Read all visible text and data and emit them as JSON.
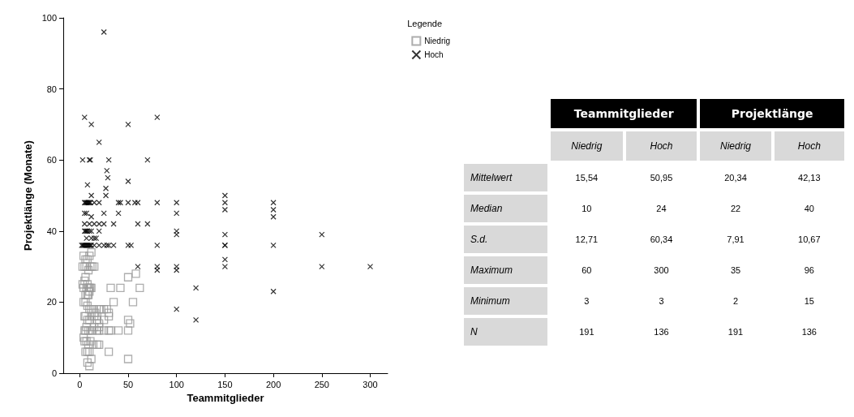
{
  "chart_data": [
    {
      "type": "scatter",
      "xlabel": "Teammitglieder",
      "ylabel": "Projektlänge (Monate)",
      "legend_title": "Legende",
      "legend": "top right",
      "grid": false,
      "xlim": [
        -17,
        318
      ],
      "ylim": [
        0,
        100
      ],
      "xticks": [
        0,
        50,
        100,
        150,
        200,
        250,
        300
      ],
      "yticks": [
        0,
        20,
        40,
        60,
        80,
        100
      ],
      "series": [
        {
          "name": "Niedrig",
          "color": "#999999",
          "marker": "square",
          "x": [
            3,
            4,
            5,
            6,
            7,
            8,
            9,
            10,
            11,
            12,
            3,
            5,
            7,
            9,
            11,
            13,
            15,
            4,
            6,
            8,
            10,
            12,
            14,
            16,
            18,
            20,
            22,
            25,
            28,
            30,
            35,
            42,
            55,
            5,
            7,
            9,
            11,
            13,
            15,
            18,
            20,
            25,
            30,
            40,
            50,
            52,
            5,
            6,
            8,
            10,
            12,
            15,
            18,
            20,
            25,
            30,
            50,
            62,
            5,
            7,
            9,
            11,
            14,
            18,
            20,
            30,
            50,
            8,
            10,
            12,
            6,
            8,
            10,
            4,
            6,
            8,
            10,
            12,
            6,
            8,
            9,
            10,
            32,
            50,
            58,
            20,
            32,
            4,
            6
          ],
          "values": [
            25,
            24,
            26,
            27,
            24,
            25,
            24,
            24,
            24,
            24,
            30,
            30,
            30,
            29,
            30,
            30,
            30,
            20,
            20,
            19,
            18,
            18,
            18,
            17,
            16,
            18,
            18,
            18,
            18,
            17,
            20,
            24,
            20,
            12,
            13,
            12,
            12,
            12,
            13,
            12,
            12,
            12,
            12,
            12,
            12,
            14,
            16,
            16,
            15,
            15,
            16,
            16,
            15,
            14,
            15,
            16,
            15,
            24,
            9,
            9,
            8,
            9,
            8,
            8,
            8,
            6,
            4,
            3,
            2,
            4,
            6,
            6,
            6,
            33,
            32,
            32,
            33,
            34,
            22,
            22,
            22,
            23,
            24,
            27,
            28,
            13,
            12,
            10,
            12
          ]
        },
        {
          "name": "Hoch",
          "color": "#000000",
          "marker": "cross",
          "x": [
            5,
            12,
            50,
            80,
            25,
            20,
            3,
            10,
            11,
            30,
            70,
            28,
            29,
            8,
            50,
            27,
            12,
            27,
            150,
            150,
            150,
            200,
            200,
            200,
            5,
            6,
            7,
            8,
            9,
            10,
            11,
            15,
            20,
            40,
            42,
            50,
            57,
            60,
            80,
            100,
            5,
            7,
            12,
            25,
            40,
            100,
            5,
            10,
            15,
            20,
            25,
            35,
            60,
            70,
            5,
            6,
            7,
            8,
            10,
            12,
            20,
            100,
            100,
            150,
            7,
            12,
            15,
            17,
            2,
            3,
            4,
            5,
            6,
            7,
            8,
            9,
            10,
            11,
            12,
            15,
            20,
            25,
            28,
            30,
            35,
            50,
            53,
            80,
            150,
            200,
            60,
            80,
            100,
            150,
            250,
            300,
            80,
            100,
            150,
            150,
            250,
            120,
            120,
            100,
            200
          ],
          "values": [
            72,
            70,
            70,
            72,
            96,
            65,
            60,
            60,
            60,
            60,
            60,
            57,
            55,
            53,
            54,
            52,
            50,
            50,
            50,
            48,
            46,
            48,
            46,
            44,
            48,
            48,
            48,
            48,
            48,
            48,
            48,
            48,
            48,
            48,
            48,
            48,
            48,
            48,
            48,
            48,
            45,
            45,
            44,
            45,
            45,
            45,
            42,
            42,
            42,
            42,
            42,
            42,
            42,
            42,
            40,
            40,
            40,
            40,
            40,
            40,
            40,
            40,
            39,
            39,
            38,
            38,
            38,
            38,
            36,
            36,
            36,
            36,
            36,
            36,
            36,
            36,
            36,
            36,
            36,
            36,
            36,
            36,
            36,
            36,
            36,
            36,
            36,
            36,
            36,
            36,
            30,
            30,
            30,
            30,
            30,
            30,
            29,
            29,
            32,
            36,
            39,
            24,
            15,
            18,
            23
          ]
        }
      ]
    },
    {
      "type": "other",
      "annotations": [
        "Teammitglieder",
        "Projektlänge"
      ],
      "categories": [
        "Niedrig",
        "Hoch",
        "Niedrig",
        "Hoch"
      ],
      "y_categories": [
        "Mittelwert",
        "Median",
        "S.d.",
        "Maximum",
        "Minimum",
        "N"
      ],
      "cell_labels": [
        [
          "15,54",
          "50,95",
          "20,34",
          "42,13"
        ],
        [
          "10",
          "24",
          "22",
          "40"
        ],
        [
          "12,71",
          "60,34",
          "7,91",
          "10,67"
        ],
        [
          "60",
          "300",
          "35",
          "96"
        ],
        [
          "3",
          "3",
          "2",
          "15"
        ],
        [
          "191",
          "136",
          "191",
          "136"
        ]
      ]
    }
  ]
}
